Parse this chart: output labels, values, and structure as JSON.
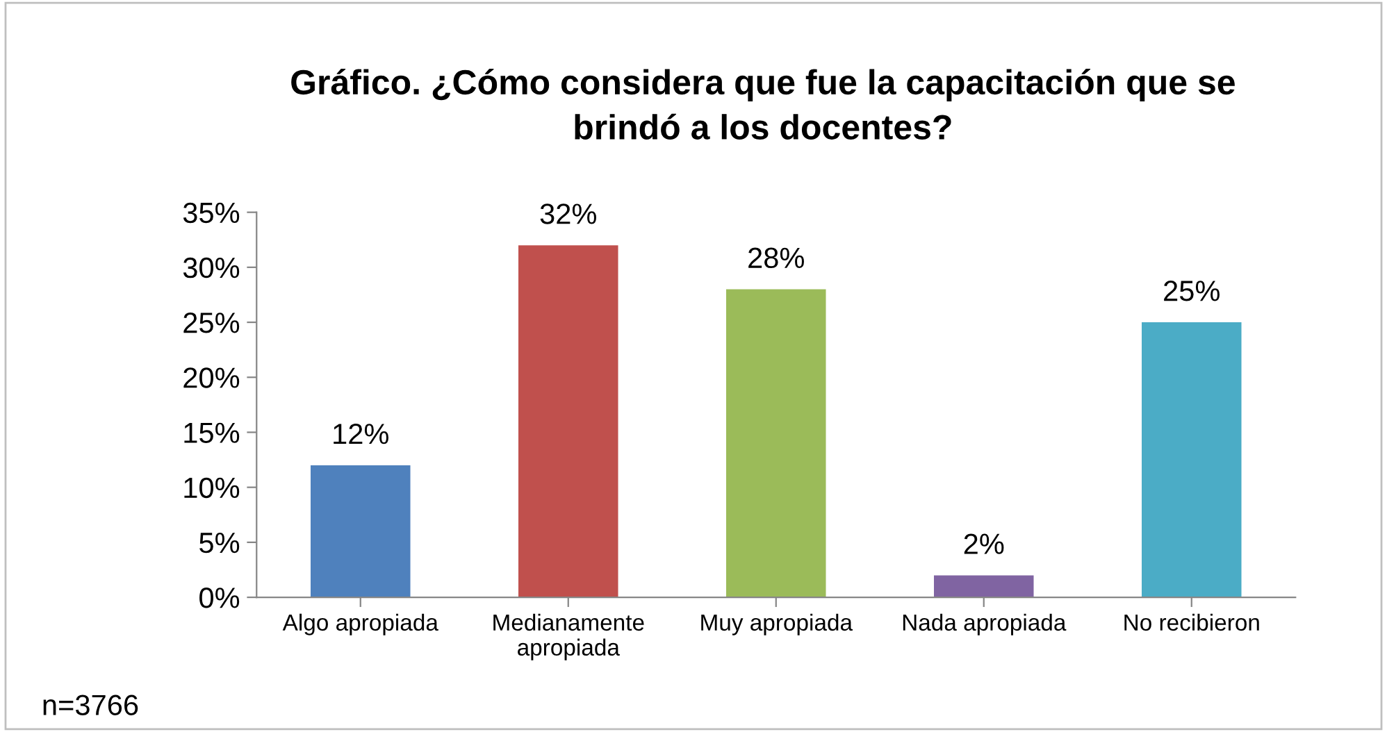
{
  "chart_data": {
    "type": "bar",
    "title": "Gráfico. ¿Cómo considera que fue la capacitación que se\nbrindó a los docentes?",
    "categories": [
      "Algo apropiada",
      "Medianamente\napropiada",
      "Muy apropiada",
      "Nada apropiada",
      "No recibieron"
    ],
    "values": [
      12,
      32,
      28,
      2,
      25
    ],
    "colors": [
      "#4f81bd",
      "#c0504d",
      "#9bbb59",
      "#8064a2",
      "#4bacc6"
    ],
    "value_labels": [
      "12%",
      "32%",
      "28%",
      "2%",
      "25%"
    ],
    "ylim": [
      0,
      35
    ],
    "yticks": [
      {
        "value": 0,
        "label": "0%"
      },
      {
        "value": 5,
        "label": "5%"
      },
      {
        "value": 10,
        "label": "10%"
      },
      {
        "value": 15,
        "label": "15%"
      },
      {
        "value": 20,
        "label": "20%"
      },
      {
        "value": 25,
        "label": "25%"
      },
      {
        "value": 30,
        "label": "30%"
      },
      {
        "value": 35,
        "label": "35%"
      }
    ],
    "grid": false,
    "annotations": [
      "n=3766"
    ]
  }
}
